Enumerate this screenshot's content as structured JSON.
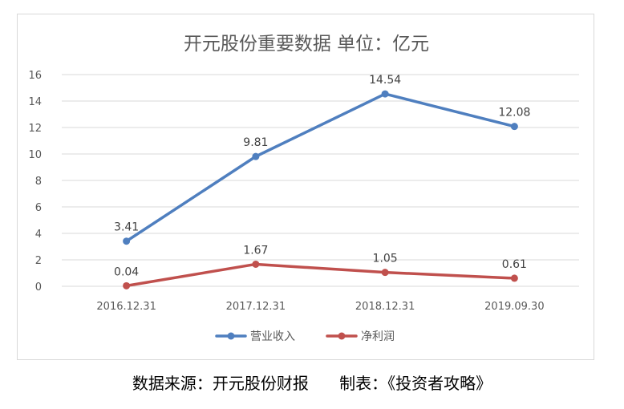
{
  "chart_data": {
    "type": "line",
    "title": "开元股份重要数据  单位：亿元",
    "categories": [
      "2016.12.31",
      "2017.12.31",
      "2018.12.31",
      "2019.09.30"
    ],
    "series": [
      {
        "name": "营业收入",
        "values": [
          3.41,
          9.81,
          14.54,
          12.08
        ],
        "color": "#4f7fbf"
      },
      {
        "name": "净利润",
        "values": [
          0.04,
          1.67,
          1.05,
          0.61
        ],
        "color": "#c0504d"
      }
    ],
    "ylim": [
      0,
      16
    ],
    "yticks": [
      0,
      2,
      4,
      6,
      8,
      10,
      12,
      14,
      16
    ],
    "grid": true,
    "legend": "bottom"
  },
  "footer": {
    "caption": "数据来源：开元股份财报      制表：《投资者攻略》"
  }
}
